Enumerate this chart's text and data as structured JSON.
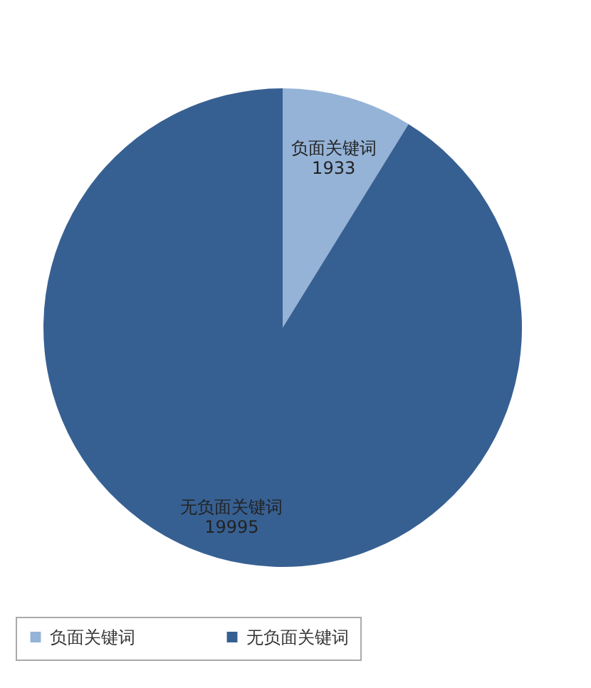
{
  "chart_data": {
    "type": "pie",
    "categories": [
      "负面关键词",
      "无负面关键词"
    ],
    "values": [
      1933,
      19995
    ],
    "colors": [
      "#95b3d7",
      "#376092"
    ],
    "data_labels": true,
    "legend": "bottom"
  }
}
